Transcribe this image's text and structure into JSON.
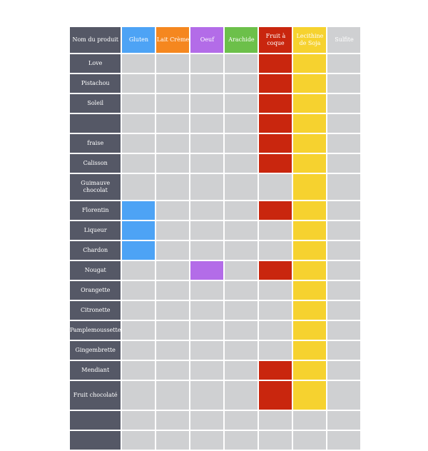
{
  "page": {
    "faded_title": ""
  },
  "header": {
    "product_label": "Nom du produit",
    "columns": [
      {
        "key": "gluten",
        "label": "Gluten",
        "color": "#4da3f5"
      },
      {
        "key": "milk",
        "label": "Lait Crème",
        "color": "#f5871f"
      },
      {
        "key": "egg",
        "label": "Oeuf",
        "color": "#b36ce8"
      },
      {
        "key": "peanut",
        "label": "Arachide",
        "color": "#6cc04a"
      },
      {
        "key": "nuts",
        "label": "Fruit à coque",
        "color": "#c9260e"
      },
      {
        "key": "soy",
        "label": "Lecithine de Soja",
        "color": "#f6d22f"
      },
      {
        "key": "sulfite",
        "label": "Sulfite",
        "color": "#cfd0d2"
      }
    ]
  },
  "rows": [
    {
      "name": "Love",
      "allergens": [
        "nuts",
        "soy"
      ]
    },
    {
      "name": "Pistachou",
      "allergens": [
        "nuts",
        "soy"
      ]
    },
    {
      "name": "Soleil",
      "allergens": [
        "nuts",
        "soy"
      ]
    },
    {
      "name": "",
      "allergens": [
        "nuts",
        "soy"
      ]
    },
    {
      "name": "fraise",
      "allergens": [
        "nuts",
        "soy"
      ]
    },
    {
      "name": "Calisson",
      "allergens": [
        "nuts",
        "soy"
      ]
    },
    {
      "name": "Guimauve chocolat",
      "allergens": [
        "soy"
      ]
    },
    {
      "name": "Florentin",
      "allergens": [
        "gluten",
        "nuts",
        "soy"
      ]
    },
    {
      "name": "Liqueur",
      "allergens": [
        "gluten",
        "soy"
      ]
    },
    {
      "name": "Chardon",
      "allergens": [
        "gluten",
        "soy"
      ]
    },
    {
      "name": "Nougat",
      "allergens": [
        "egg",
        "nuts",
        "soy"
      ]
    },
    {
      "name": "Orangette",
      "allergens": [
        "soy"
      ]
    },
    {
      "name": "Citronette",
      "allergens": [
        "soy"
      ]
    },
    {
      "name": "Pamplemoussette",
      "allergens": [
        "soy"
      ]
    },
    {
      "name": "Gingembrette",
      "allergens": [
        "soy"
      ]
    },
    {
      "name": "Mendiant",
      "allergens": [
        "nuts",
        "soy"
      ]
    },
    {
      "name": "Fruit chocolaté",
      "allergens": [
        "nuts",
        "soy"
      ]
    },
    {
      "name": "",
      "allergens": []
    },
    {
      "name": "",
      "allergens": []
    }
  ]
}
